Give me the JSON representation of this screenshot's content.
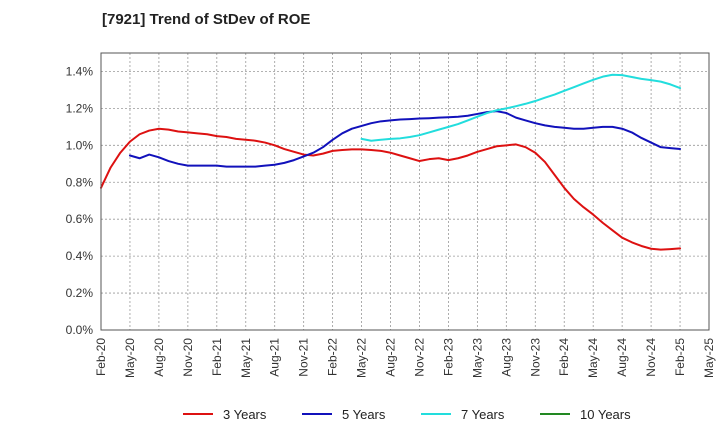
{
  "chart_data": {
    "type": "line",
    "title": "[7921]  Trend of StDev of ROE",
    "xlabel": "",
    "ylabel": "",
    "x_ticks": [
      "Feb-20",
      "May-20",
      "Aug-20",
      "Nov-20",
      "Feb-21",
      "May-21",
      "Aug-21",
      "Nov-21",
      "Feb-22",
      "May-22",
      "Aug-22",
      "Nov-22",
      "Feb-23",
      "May-23",
      "Aug-23",
      "Nov-23",
      "Feb-24",
      "May-24",
      "Aug-24",
      "Nov-24",
      "Feb-25",
      "May-25"
    ],
    "y_ticks": [
      "0.0%",
      "0.2%",
      "0.4%",
      "0.6%",
      "0.8%",
      "1.0%",
      "1.2%",
      "1.4%"
    ],
    "ylim": [
      0,
      1.5
    ],
    "grid": true,
    "legend_position": "bottom",
    "series": [
      {
        "name": "3 Years",
        "color": "#dd1111",
        "x": [
          "Feb-20",
          "Mar-20",
          "Apr-20",
          "May-20",
          "Jun-20",
          "Jul-20",
          "Aug-20",
          "Sep-20",
          "Oct-20",
          "Nov-20",
          "Dec-20",
          "Jan-21",
          "Feb-21",
          "Mar-21",
          "Apr-21",
          "May-21",
          "Jun-21",
          "Jul-21",
          "Aug-21",
          "Sep-21",
          "Oct-21",
          "Nov-21",
          "Dec-21",
          "Jan-22",
          "Feb-22",
          "Mar-22",
          "Apr-22",
          "May-22",
          "Jun-22",
          "Jul-22",
          "Aug-22",
          "Sep-22",
          "Oct-22",
          "Nov-22",
          "Dec-22",
          "Jan-23",
          "Feb-23",
          "Mar-23",
          "Apr-23",
          "May-23",
          "Jun-23",
          "Jul-23",
          "Aug-23",
          "Sep-23",
          "Oct-23",
          "Nov-23",
          "Dec-23",
          "Jan-24",
          "Feb-24",
          "Mar-24",
          "Apr-24",
          "May-24",
          "Jun-24",
          "Jul-24",
          "Aug-24",
          "Sep-24",
          "Oct-24",
          "Nov-24",
          "Dec-24",
          "Jan-25",
          "Feb-25"
        ],
        "values": [
          0.77,
          0.88,
          0.96,
          1.02,
          1.06,
          1.08,
          1.09,
          1.085,
          1.075,
          1.07,
          1.065,
          1.06,
          1.05,
          1.045,
          1.035,
          1.03,
          1.025,
          1.015,
          1.0,
          0.98,
          0.965,
          0.95,
          0.945,
          0.955,
          0.97,
          0.975,
          0.978,
          0.978,
          0.975,
          0.97,
          0.96,
          0.945,
          0.93,
          0.915,
          0.925,
          0.93,
          0.92,
          0.93,
          0.945,
          0.965,
          0.98,
          0.995,
          1.0,
          1.005,
          0.99,
          0.96,
          0.91,
          0.84,
          0.77,
          0.71,
          0.665,
          0.625,
          0.58,
          0.54,
          0.5,
          0.475,
          0.455,
          0.44,
          0.435,
          0.438,
          0.442
        ]
      },
      {
        "name": "5 Years",
        "color": "#1111bb",
        "x": [
          "May-20",
          "Jun-20",
          "Jul-20",
          "Aug-20",
          "Sep-20",
          "Oct-20",
          "Nov-20",
          "Dec-20",
          "Jan-21",
          "Feb-21",
          "Mar-21",
          "Apr-21",
          "May-21",
          "Jun-21",
          "Jul-21",
          "Aug-21",
          "Sep-21",
          "Oct-21",
          "Nov-21",
          "Dec-21",
          "Jan-22",
          "Feb-22",
          "Mar-22",
          "Apr-22",
          "May-22",
          "Jun-22",
          "Jul-22",
          "Aug-22",
          "Sep-22",
          "Oct-22",
          "Nov-22",
          "Dec-22",
          "Jan-23",
          "Feb-23",
          "Mar-23",
          "Apr-23",
          "May-23",
          "Jun-23",
          "Jul-23",
          "Aug-23",
          "Sep-23",
          "Oct-23",
          "Nov-23",
          "Dec-23",
          "Jan-24",
          "Feb-24",
          "Mar-24",
          "Apr-24",
          "May-24",
          "Jun-24",
          "Jul-24",
          "Aug-24",
          "Sep-24",
          "Oct-24",
          "Nov-24",
          "Dec-24",
          "Jan-25",
          "Feb-25"
        ],
        "values": [
          0.945,
          0.93,
          0.95,
          0.935,
          0.915,
          0.9,
          0.89,
          0.89,
          0.89,
          0.89,
          0.885,
          0.885,
          0.885,
          0.885,
          0.89,
          0.895,
          0.905,
          0.92,
          0.94,
          0.96,
          0.99,
          1.03,
          1.065,
          1.09,
          1.105,
          1.12,
          1.13,
          1.135,
          1.14,
          1.142,
          1.145,
          1.147,
          1.15,
          1.152,
          1.155,
          1.16,
          1.17,
          1.18,
          1.185,
          1.175,
          1.15,
          1.135,
          1.12,
          1.108,
          1.1,
          1.095,
          1.09,
          1.09,
          1.095,
          1.1,
          1.1,
          1.09,
          1.07,
          1.04,
          1.015,
          0.99,
          0.985,
          0.98
        ]
      },
      {
        "name": "7 Years",
        "color": "#22dddd",
        "x": [
          "May-22",
          "Jun-22",
          "Jul-22",
          "Aug-22",
          "Sep-22",
          "Oct-22",
          "Nov-22",
          "Dec-22",
          "Jan-23",
          "Feb-23",
          "Mar-23",
          "Apr-23",
          "May-23",
          "Jun-23",
          "Jul-23",
          "Aug-23",
          "Sep-23",
          "Oct-23",
          "Nov-23",
          "Dec-23",
          "Jan-24",
          "Feb-24",
          "Mar-24",
          "Apr-24",
          "May-24",
          "Jun-24",
          "Jul-24",
          "Aug-24",
          "Sep-24",
          "Oct-24",
          "Nov-24",
          "Dec-24",
          "Jan-25",
          "Feb-25"
        ],
        "values": [
          1.035,
          1.025,
          1.03,
          1.035,
          1.038,
          1.045,
          1.055,
          1.07,
          1.085,
          1.1,
          1.115,
          1.135,
          1.155,
          1.175,
          1.19,
          1.2,
          1.212,
          1.225,
          1.24,
          1.258,
          1.275,
          1.295,
          1.315,
          1.335,
          1.355,
          1.372,
          1.382,
          1.38,
          1.37,
          1.36,
          1.353,
          1.345,
          1.33,
          1.31
        ]
      },
      {
        "name": "10 Years",
        "color": "#228822",
        "x": [],
        "values": []
      }
    ]
  }
}
